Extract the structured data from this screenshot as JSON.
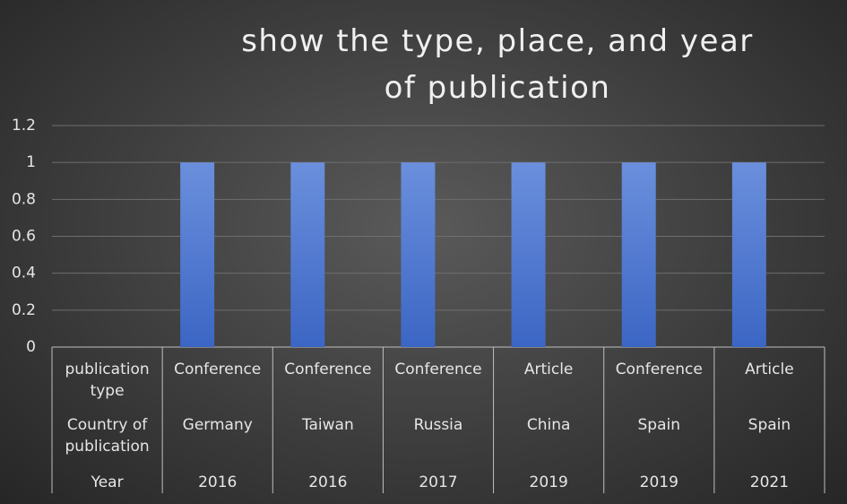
{
  "chart_data": {
    "type": "bar",
    "title": "show the type, place, and year of publication",
    "category_levels": [
      {
        "name": "publication type",
        "labels": [
          "Conference",
          "Conference",
          "Conference",
          "Article",
          "Conference",
          "Article"
        ]
      },
      {
        "name": "Country of publication",
        "labels": [
          "Germany",
          "Taiwan",
          "Russia",
          "China",
          "Spain",
          "Spain"
        ]
      },
      {
        "name": "Year",
        "labels": [
          "2016",
          "2016",
          "2017",
          "2019",
          "2019",
          "2021"
        ]
      }
    ],
    "values": [
      1,
      1,
      1,
      1,
      1,
      1
    ],
    "color": "#4a73cc",
    "ylim": [
      0,
      1.2
    ],
    "yticks": [
      0,
      0.2,
      0.4,
      0.6,
      0.8,
      1,
      1.2
    ],
    "grid": true
  }
}
